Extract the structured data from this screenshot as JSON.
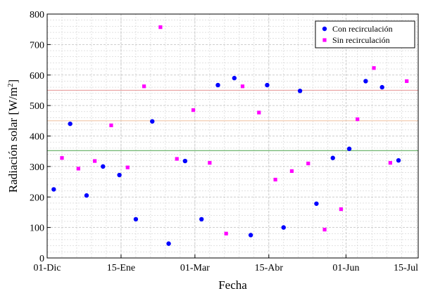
{
  "chart_data": {
    "type": "scatter",
    "xlabel": "Fecha",
    "ylabel_main": "Radiación solar [W/m",
    "ylabel_sup": "2",
    "ylabel_close": "]",
    "xlim": [
      "2020-12-01",
      "2021-07-15"
    ],
    "ylim": [
      0,
      800
    ],
    "y_ticks": [
      0,
      100,
      200,
      300,
      400,
      500,
      600,
      700,
      800
    ],
    "x_ticks": [
      {
        "date": "2020-12-01",
        "label": "01-Dic"
      },
      {
        "date": "2021-01-15",
        "label": "15-Ene"
      },
      {
        "date": "2021-03-01",
        "label": "01-Mar"
      },
      {
        "date": "2021-04-15",
        "label": "15-Abr"
      },
      {
        "date": "2021-06-01",
        "label": "01-Jun"
      },
      {
        "date": "2021-07-15",
        "label": "15-Jul"
      }
    ],
    "grid": true,
    "legend_position": "top-right",
    "reference_lines": [
      {
        "y": 550,
        "color": "#e8a0a0"
      },
      {
        "y": 450,
        "color": "#f2c6a8"
      },
      {
        "y": 352,
        "color": "#5fae5f"
      }
    ],
    "series": [
      {
        "name": "Con recirculación",
        "color": "#0000ff",
        "marker": "circle",
        "points": [
          {
            "x": "2020-12-05",
            "y": 225
          },
          {
            "x": "2020-12-15",
            "y": 440
          },
          {
            "x": "2020-12-25",
            "y": 205
          },
          {
            "x": "2021-01-04",
            "y": 300
          },
          {
            "x": "2021-01-14",
            "y": 272
          },
          {
            "x": "2021-01-24",
            "y": 127
          },
          {
            "x": "2021-02-03",
            "y": 448
          },
          {
            "x": "2021-02-13",
            "y": 47
          },
          {
            "x": "2021-02-23",
            "y": 318
          },
          {
            "x": "2021-03-05",
            "y": 127
          },
          {
            "x": "2021-03-15",
            "y": 567
          },
          {
            "x": "2021-03-25",
            "y": 590
          },
          {
            "x": "2021-04-04",
            "y": 75
          },
          {
            "x": "2021-04-14",
            "y": 567
          },
          {
            "x": "2021-04-24",
            "y": 100
          },
          {
            "x": "2021-05-04",
            "y": 548
          },
          {
            "x": "2021-05-14",
            "y": 178
          },
          {
            "x": "2021-05-24",
            "y": 328
          },
          {
            "x": "2021-06-03",
            "y": 358
          },
          {
            "x": "2021-06-13",
            "y": 580
          },
          {
            "x": "2021-06-23",
            "y": 560
          },
          {
            "x": "2021-07-03",
            "y": 320
          }
        ]
      },
      {
        "name": "Sin recirculación",
        "color": "#ff00ff",
        "marker": "square",
        "points": [
          {
            "x": "2020-12-10",
            "y": 328
          },
          {
            "x": "2020-12-20",
            "y": 293
          },
          {
            "x": "2020-12-30",
            "y": 318
          },
          {
            "x": "2021-01-09",
            "y": 435
          },
          {
            "x": "2021-01-19",
            "y": 297
          },
          {
            "x": "2021-01-29",
            "y": 563
          },
          {
            "x": "2021-02-08",
            "y": 757
          },
          {
            "x": "2021-02-18",
            "y": 325
          },
          {
            "x": "2021-02-28",
            "y": 485
          },
          {
            "x": "2021-03-10",
            "y": 312
          },
          {
            "x": "2021-03-20",
            "y": 80
          },
          {
            "x": "2021-03-30",
            "y": 563
          },
          {
            "x": "2021-04-09",
            "y": 477
          },
          {
            "x": "2021-04-19",
            "y": 257
          },
          {
            "x": "2021-04-29",
            "y": 285
          },
          {
            "x": "2021-05-09",
            "y": 310
          },
          {
            "x": "2021-05-19",
            "y": 93
          },
          {
            "x": "2021-05-29",
            "y": 160
          },
          {
            "x": "2021-06-08",
            "y": 455
          },
          {
            "x": "2021-06-18",
            "y": 623
          },
          {
            "x": "2021-06-28",
            "y": 312
          },
          {
            "x": "2021-07-08",
            "y": 580
          }
        ]
      }
    ]
  }
}
